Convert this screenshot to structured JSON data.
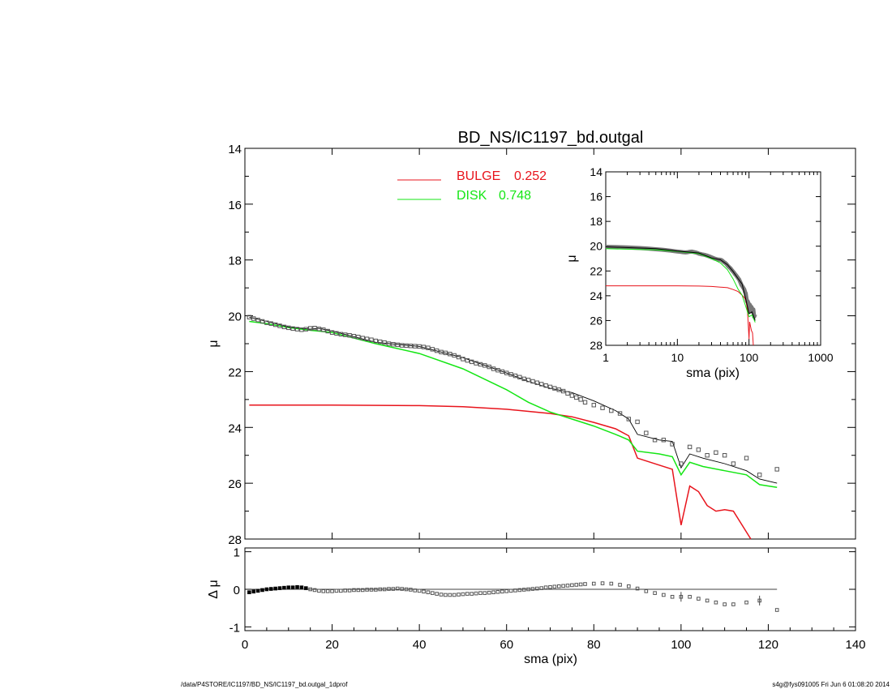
{
  "title": "BD_NS/IC1197_bd.outgal",
  "footer": {
    "left": "/data/P4STORE/IC1197/BD_NS/IC1197_bd.outgal_1dprof",
    "right": "s4g@fys091005  Fri Jun  6 01:08:20 2014"
  },
  "colors": {
    "bulge": "#e8141c",
    "disk": "#14e614",
    "model": "#000000",
    "data": "#555555"
  },
  "legend": [
    {
      "label": "BULGE",
      "value": "0.252",
      "color": "#e8141c"
    },
    {
      "label": "DISK",
      "value": "0.748",
      "color": "#14e614"
    }
  ],
  "chart_data": [
    {
      "id": "main",
      "type": "line",
      "xlabel": "",
      "ylabel": "μ",
      "xlim": [
        0,
        140
      ],
      "ylim": [
        28,
        14
      ],
      "y_inverted": true,
      "xticks": [
        0,
        20,
        40,
        60,
        80,
        100,
        120,
        140
      ],
      "yticks": [
        14,
        16,
        18,
        20,
        22,
        24,
        26,
        28
      ],
      "data_points": {
        "x": [
          1,
          2,
          3,
          4,
          5,
          6,
          7,
          8,
          9,
          10,
          11,
          12,
          13,
          14,
          15,
          16,
          17,
          18,
          19,
          20,
          21,
          22,
          23,
          24,
          25,
          26,
          27,
          28,
          29,
          30,
          31,
          32,
          33,
          34,
          35,
          36,
          37,
          38,
          39,
          40,
          41,
          42,
          43,
          44,
          45,
          46,
          47,
          48,
          49,
          50,
          51,
          52,
          53,
          54,
          55,
          56,
          57,
          58,
          59,
          60,
          61,
          62,
          63,
          64,
          65,
          66,
          67,
          68,
          69,
          70,
          71,
          72,
          73,
          74,
          75,
          76,
          77,
          78,
          80,
          82,
          84,
          86,
          88,
          90,
          92,
          94,
          96,
          98,
          100,
          102,
          104,
          106,
          108,
          110,
          112,
          115,
          118,
          122
        ],
        "y": [
          20.05,
          20.1,
          20.15,
          20.2,
          20.25,
          20.28,
          20.32,
          20.36,
          20.4,
          20.43,
          20.46,
          20.48,
          20.5,
          20.48,
          20.45,
          20.44,
          20.47,
          20.5,
          20.55,
          20.6,
          20.63,
          20.66,
          20.68,
          20.7,
          20.73,
          20.76,
          20.8,
          20.83,
          20.86,
          20.9,
          20.93,
          20.96,
          21.0,
          21.02,
          21.04,
          21.06,
          21.07,
          21.08,
          21.09,
          21.1,
          21.12,
          21.15,
          21.2,
          21.25,
          21.3,
          21.33,
          21.37,
          21.42,
          21.48,
          21.55,
          21.6,
          21.65,
          21.7,
          21.74,
          21.78,
          21.83,
          21.9,
          21.95,
          22.0,
          22.05,
          22.1,
          22.15,
          22.2,
          22.26,
          22.3,
          22.35,
          22.4,
          22.45,
          22.5,
          22.55,
          22.6,
          22.65,
          22.7,
          22.78,
          22.86,
          22.93,
          23.0,
          23.1,
          23.2,
          23.3,
          23.4,
          23.5,
          23.7,
          23.8,
          24.2,
          24.45,
          24.45,
          24.6,
          25.3,
          24.7,
          24.8,
          25.0,
          24.9,
          25.0,
          25.3,
          25.1,
          25.7,
          25.5
        ]
      },
      "series": [
        {
          "name": "BULGE",
          "x": [
            1,
            20,
            40,
            50,
            60,
            70,
            75,
            80,
            85,
            88,
            90,
            95,
            98,
            100,
            102,
            104,
            106,
            108,
            110,
            112,
            116
          ],
          "y": [
            23.2,
            23.2,
            23.22,
            23.26,
            23.35,
            23.5,
            23.62,
            23.82,
            24.05,
            24.3,
            25.1,
            25.35,
            25.5,
            27.5,
            26.1,
            26.3,
            26.8,
            27.0,
            26.95,
            27.0,
            28.0
          ]
        },
        {
          "name": "DISK",
          "x": [
            1,
            5,
            10,
            15,
            17,
            20,
            30,
            40,
            50,
            60,
            65,
            70,
            75,
            80,
            85,
            88,
            90,
            95,
            98,
            100,
            102,
            105,
            110,
            115,
            118,
            122
          ],
          "y": [
            20.2,
            20.28,
            20.42,
            20.52,
            20.55,
            20.6,
            21.0,
            21.35,
            21.9,
            22.65,
            23.1,
            23.45,
            23.7,
            23.95,
            24.25,
            24.45,
            24.85,
            24.95,
            25.05,
            25.7,
            25.25,
            25.4,
            25.55,
            25.7,
            26.05,
            26.15
          ]
        },
        {
          "name": "TOTAL",
          "x": [
            1,
            5,
            10,
            15,
            17,
            20,
            30,
            40,
            50,
            60,
            65,
            70,
            75,
            80,
            85,
            88,
            90,
            95,
            98,
            100,
            102,
            105,
            110,
            115,
            118,
            122
          ],
          "y": [
            20.05,
            20.2,
            20.4,
            20.48,
            20.45,
            20.55,
            20.95,
            21.1,
            21.5,
            22.05,
            22.35,
            22.6,
            22.75,
            23.05,
            23.4,
            23.7,
            24.25,
            24.45,
            24.5,
            25.45,
            24.95,
            25.1,
            25.3,
            25.55,
            25.85,
            26.0
          ]
        }
      ]
    },
    {
      "id": "residual",
      "type": "scatter",
      "xlabel": "sma (pix)",
      "ylabel": "Δ μ",
      "xlim": [
        0,
        140
      ],
      "ylim": [
        -1.1,
        1.1
      ],
      "xticks": [
        0,
        20,
        40,
        60,
        80,
        100,
        120,
        140
      ],
      "yticks": [
        -1,
        0,
        1
      ],
      "zero_line_x": [
        1,
        122
      ],
      "data_points": {
        "x": [
          1,
          2,
          3,
          4,
          5,
          6,
          7,
          8,
          9,
          10,
          11,
          12,
          13,
          14,
          15,
          16,
          17,
          18,
          19,
          20,
          21,
          22,
          23,
          24,
          25,
          26,
          27,
          28,
          29,
          30,
          31,
          32,
          33,
          34,
          35,
          36,
          37,
          38,
          39,
          40,
          41,
          42,
          43,
          44,
          45,
          46,
          47,
          48,
          49,
          50,
          51,
          52,
          53,
          54,
          55,
          56,
          57,
          58,
          59,
          60,
          61,
          62,
          63,
          64,
          65,
          66,
          67,
          68,
          69,
          70,
          71,
          72,
          73,
          74,
          75,
          76,
          77,
          78,
          80,
          82,
          84,
          86,
          88,
          90,
          92,
          94,
          96,
          98,
          100,
          102,
          104,
          106,
          108,
          110,
          112,
          115,
          118,
          122
        ],
        "y": [
          -0.08,
          -0.06,
          -0.04,
          -0.02,
          0.0,
          0.01,
          0.02,
          0.03,
          0.04,
          0.05,
          0.05,
          0.06,
          0.05,
          0.03,
          0.0,
          -0.02,
          -0.04,
          -0.05,
          -0.05,
          -0.05,
          -0.04,
          -0.04,
          -0.03,
          -0.03,
          -0.02,
          -0.02,
          -0.02,
          -0.01,
          -0.01,
          -0.01,
          0.0,
          0.0,
          0.01,
          0.01,
          0.02,
          0.01,
          0.0,
          -0.01,
          -0.03,
          -0.04,
          -0.06,
          -0.08,
          -0.1,
          -0.12,
          -0.14,
          -0.15,
          -0.15,
          -0.15,
          -0.14,
          -0.13,
          -0.12,
          -0.12,
          -0.11,
          -0.1,
          -0.1,
          -0.09,
          -0.08,
          -0.07,
          -0.06,
          -0.05,
          -0.04,
          -0.03,
          -0.02,
          -0.01,
          0.0,
          0.01,
          0.02,
          0.03,
          0.05,
          0.06,
          0.07,
          0.08,
          0.09,
          0.1,
          0.11,
          0.12,
          0.13,
          0.14,
          0.15,
          0.16,
          0.15,
          0.12,
          0.08,
          0.02,
          -0.05,
          -0.1,
          -0.15,
          -0.2,
          -0.2,
          -0.2,
          -0.25,
          -0.3,
          -0.35,
          -0.4,
          -0.4,
          -0.35,
          -0.3,
          -0.55
        ]
      }
    },
    {
      "id": "inset",
      "type": "line",
      "xlabel": "sma (pix)",
      "ylabel": "μ",
      "x_scale": "log",
      "xlim": [
        1,
        1000
      ],
      "ylim": [
        28,
        14
      ],
      "y_inverted": true,
      "xticks": [
        1,
        10,
        100,
        1000
      ],
      "yticks": [
        14,
        16,
        18,
        20,
        22,
        24,
        26,
        28
      ],
      "series": [
        {
          "name": "BULGE",
          "x": [
            1,
            5,
            10,
            20,
            30,
            50,
            60,
            70,
            80,
            90,
            95,
            100,
            102,
            108,
            112,
            115
          ],
          "y": [
            23.2,
            23.2,
            23.2,
            23.22,
            23.25,
            23.35,
            23.5,
            23.65,
            23.95,
            24.3,
            25.1,
            27.5,
            26.1,
            26.8,
            27.0,
            28.0
          ]
        },
        {
          "name": "DISK",
          "x": [
            1,
            5,
            10,
            15,
            20,
            30,
            40,
            50,
            60,
            70,
            80,
            90,
            100,
            110,
            122
          ],
          "y": [
            20.2,
            20.3,
            20.42,
            20.52,
            20.6,
            21.0,
            21.35,
            21.9,
            22.65,
            23.45,
            23.95,
            24.85,
            25.7,
            25.55,
            26.15
          ]
        },
        {
          "name": "TOTAL",
          "x": [
            1,
            5,
            10,
            15,
            20,
            30,
            40,
            50,
            60,
            70,
            80,
            90,
            100,
            110,
            122
          ],
          "y": [
            20.05,
            20.2,
            20.4,
            20.48,
            20.55,
            20.95,
            21.1,
            21.5,
            22.05,
            22.6,
            23.05,
            24.25,
            25.45,
            25.3,
            26.0
          ]
        }
      ]
    }
  ]
}
